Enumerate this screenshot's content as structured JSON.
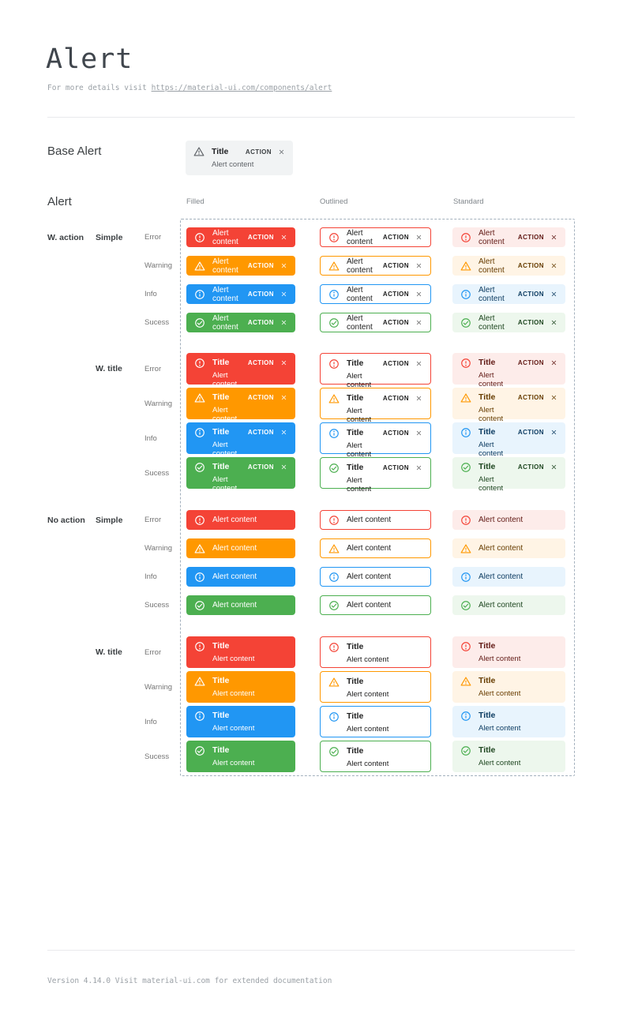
{
  "page": {
    "title": "Alert",
    "subtitle_prefix": "For more details visit ",
    "subtitle_link": "https://material-ui.com/components/alert"
  },
  "base_section": {
    "label": "Base Alert",
    "alert": {
      "title": "Title",
      "content": "Alert content",
      "action": "ACTION"
    }
  },
  "grid": {
    "section_label": "Alert",
    "column_headers": [
      "Filled",
      "Outlined",
      "Standard"
    ],
    "variants": [
      "filled",
      "outlined",
      "standard"
    ],
    "row_groups": [
      {
        "action_label": "W. action",
        "style_label": "Simple",
        "with_action": true,
        "with_title": false
      },
      {
        "action_label": "",
        "style_label": "W. title",
        "with_action": true,
        "with_title": true
      },
      {
        "action_label": "No action",
        "style_label": "Simple",
        "with_action": false,
        "with_title": false
      },
      {
        "action_label": "",
        "style_label": "W. title",
        "with_action": false,
        "with_title": true
      }
    ],
    "severities": [
      {
        "key": "error",
        "label": "Error",
        "icon": "error-icon",
        "color_main": "#f44336",
        "standard_bg": "#fdecea",
        "standard_text": "#611a15"
      },
      {
        "key": "warning",
        "label": "Warning",
        "icon": "warning-icon",
        "color_main": "#ff9800",
        "standard_bg": "#fff4e5",
        "standard_text": "#663c00"
      },
      {
        "key": "info",
        "label": "Info",
        "icon": "info-icon",
        "color_main": "#2196f3",
        "standard_bg": "#e8f4fd",
        "standard_text": "#0d3c61"
      },
      {
        "key": "success",
        "label": "Sucess",
        "icon": "success-icon",
        "color_main": "#4caf50",
        "standard_bg": "#edf7ed",
        "standard_text": "#1e4620"
      }
    ],
    "alert_text": {
      "title": "Title",
      "content": "Alert content",
      "action": "ACTION"
    }
  },
  "footer": {
    "text": "Version 4.14.0  Visit material-ui.com for extended documentation"
  },
  "colors": {
    "filled_text": "#ffffff",
    "outlined_text": "#212121",
    "outlined_close": "#616161",
    "dashed_border": "#a3b0bd"
  }
}
